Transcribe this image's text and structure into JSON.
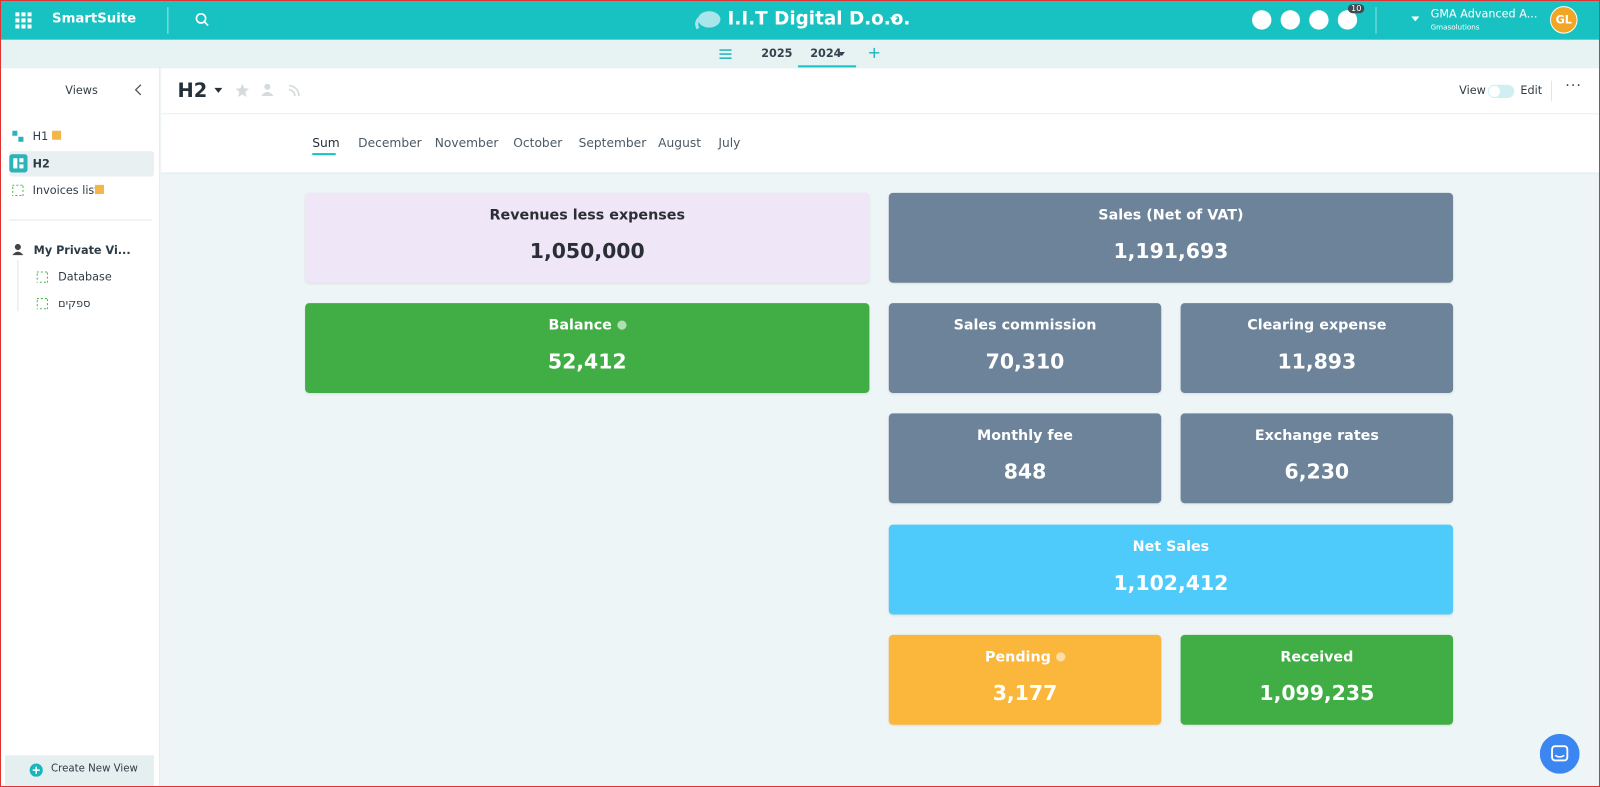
{
  "topbar": {
    "brand": "SmartSuite",
    "workspace": "I.I.T Digital D.o.o.",
    "notifications": "10",
    "account_name": "GMA Advanced A...",
    "account_org": "Gmasolutions",
    "avatar": "GL"
  },
  "year_tabs": [
    "2025",
    "2024"
  ],
  "sidebar": {
    "title": "Views",
    "views": [
      "H1",
      "H2",
      "Invoices list"
    ],
    "private_section": "My Private Vi...",
    "private_views": [
      "Database",
      "ספקים"
    ],
    "create": "Create New View"
  },
  "page": {
    "title": "H2",
    "view": "View",
    "edit": "Edit"
  },
  "tabs": [
    "Sum",
    "December",
    "November",
    "October",
    "September",
    "August",
    "July"
  ],
  "cards": [
    {
      "label": "Revenues less expenses",
      "value": "1,050,000"
    },
    {
      "label": "Sales (Net of VAT)",
      "value": "1,191,693"
    },
    {
      "label": "Balance",
      "value": "52,412"
    },
    {
      "label": "Sales commission",
      "value": "70,310"
    },
    {
      "label": "Clearing expense",
      "value": "11,893"
    },
    {
      "label": "Monthly fee",
      "value": "848"
    },
    {
      "label": "Exchange rates",
      "value": "6,230"
    },
    {
      "label": "Net Sales",
      "value": "1,102,412"
    },
    {
      "label": "Pending",
      "value": "3,177"
    },
    {
      "label": "Received",
      "value": "1,099,235"
    }
  ]
}
